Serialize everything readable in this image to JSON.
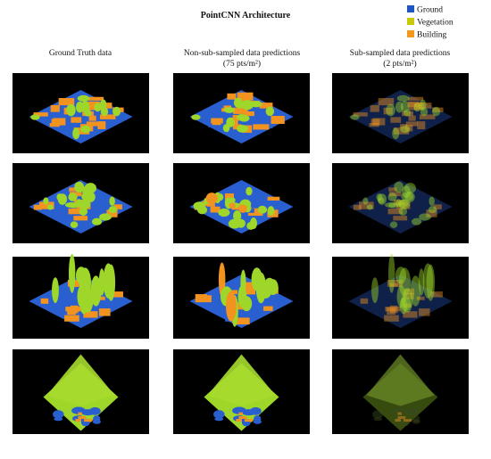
{
  "header": {
    "title": "PointCNN Architecture"
  },
  "legend": [
    {
      "label": "Ground",
      "color": "#1f56c4"
    },
    {
      "label": "Vegetation",
      "color": "#c9c80a"
    },
    {
      "label": "Building",
      "color": "#f39a1e"
    }
  ],
  "columns": [
    {
      "title": "Ground Truth data"
    },
    {
      "title": "Non-sub-sampled data predictions",
      "subtitle": "(75 pts/m²)"
    },
    {
      "title": "Sub-sampled data predictions",
      "subtitle": "(2 pts/m²)"
    }
  ]
}
